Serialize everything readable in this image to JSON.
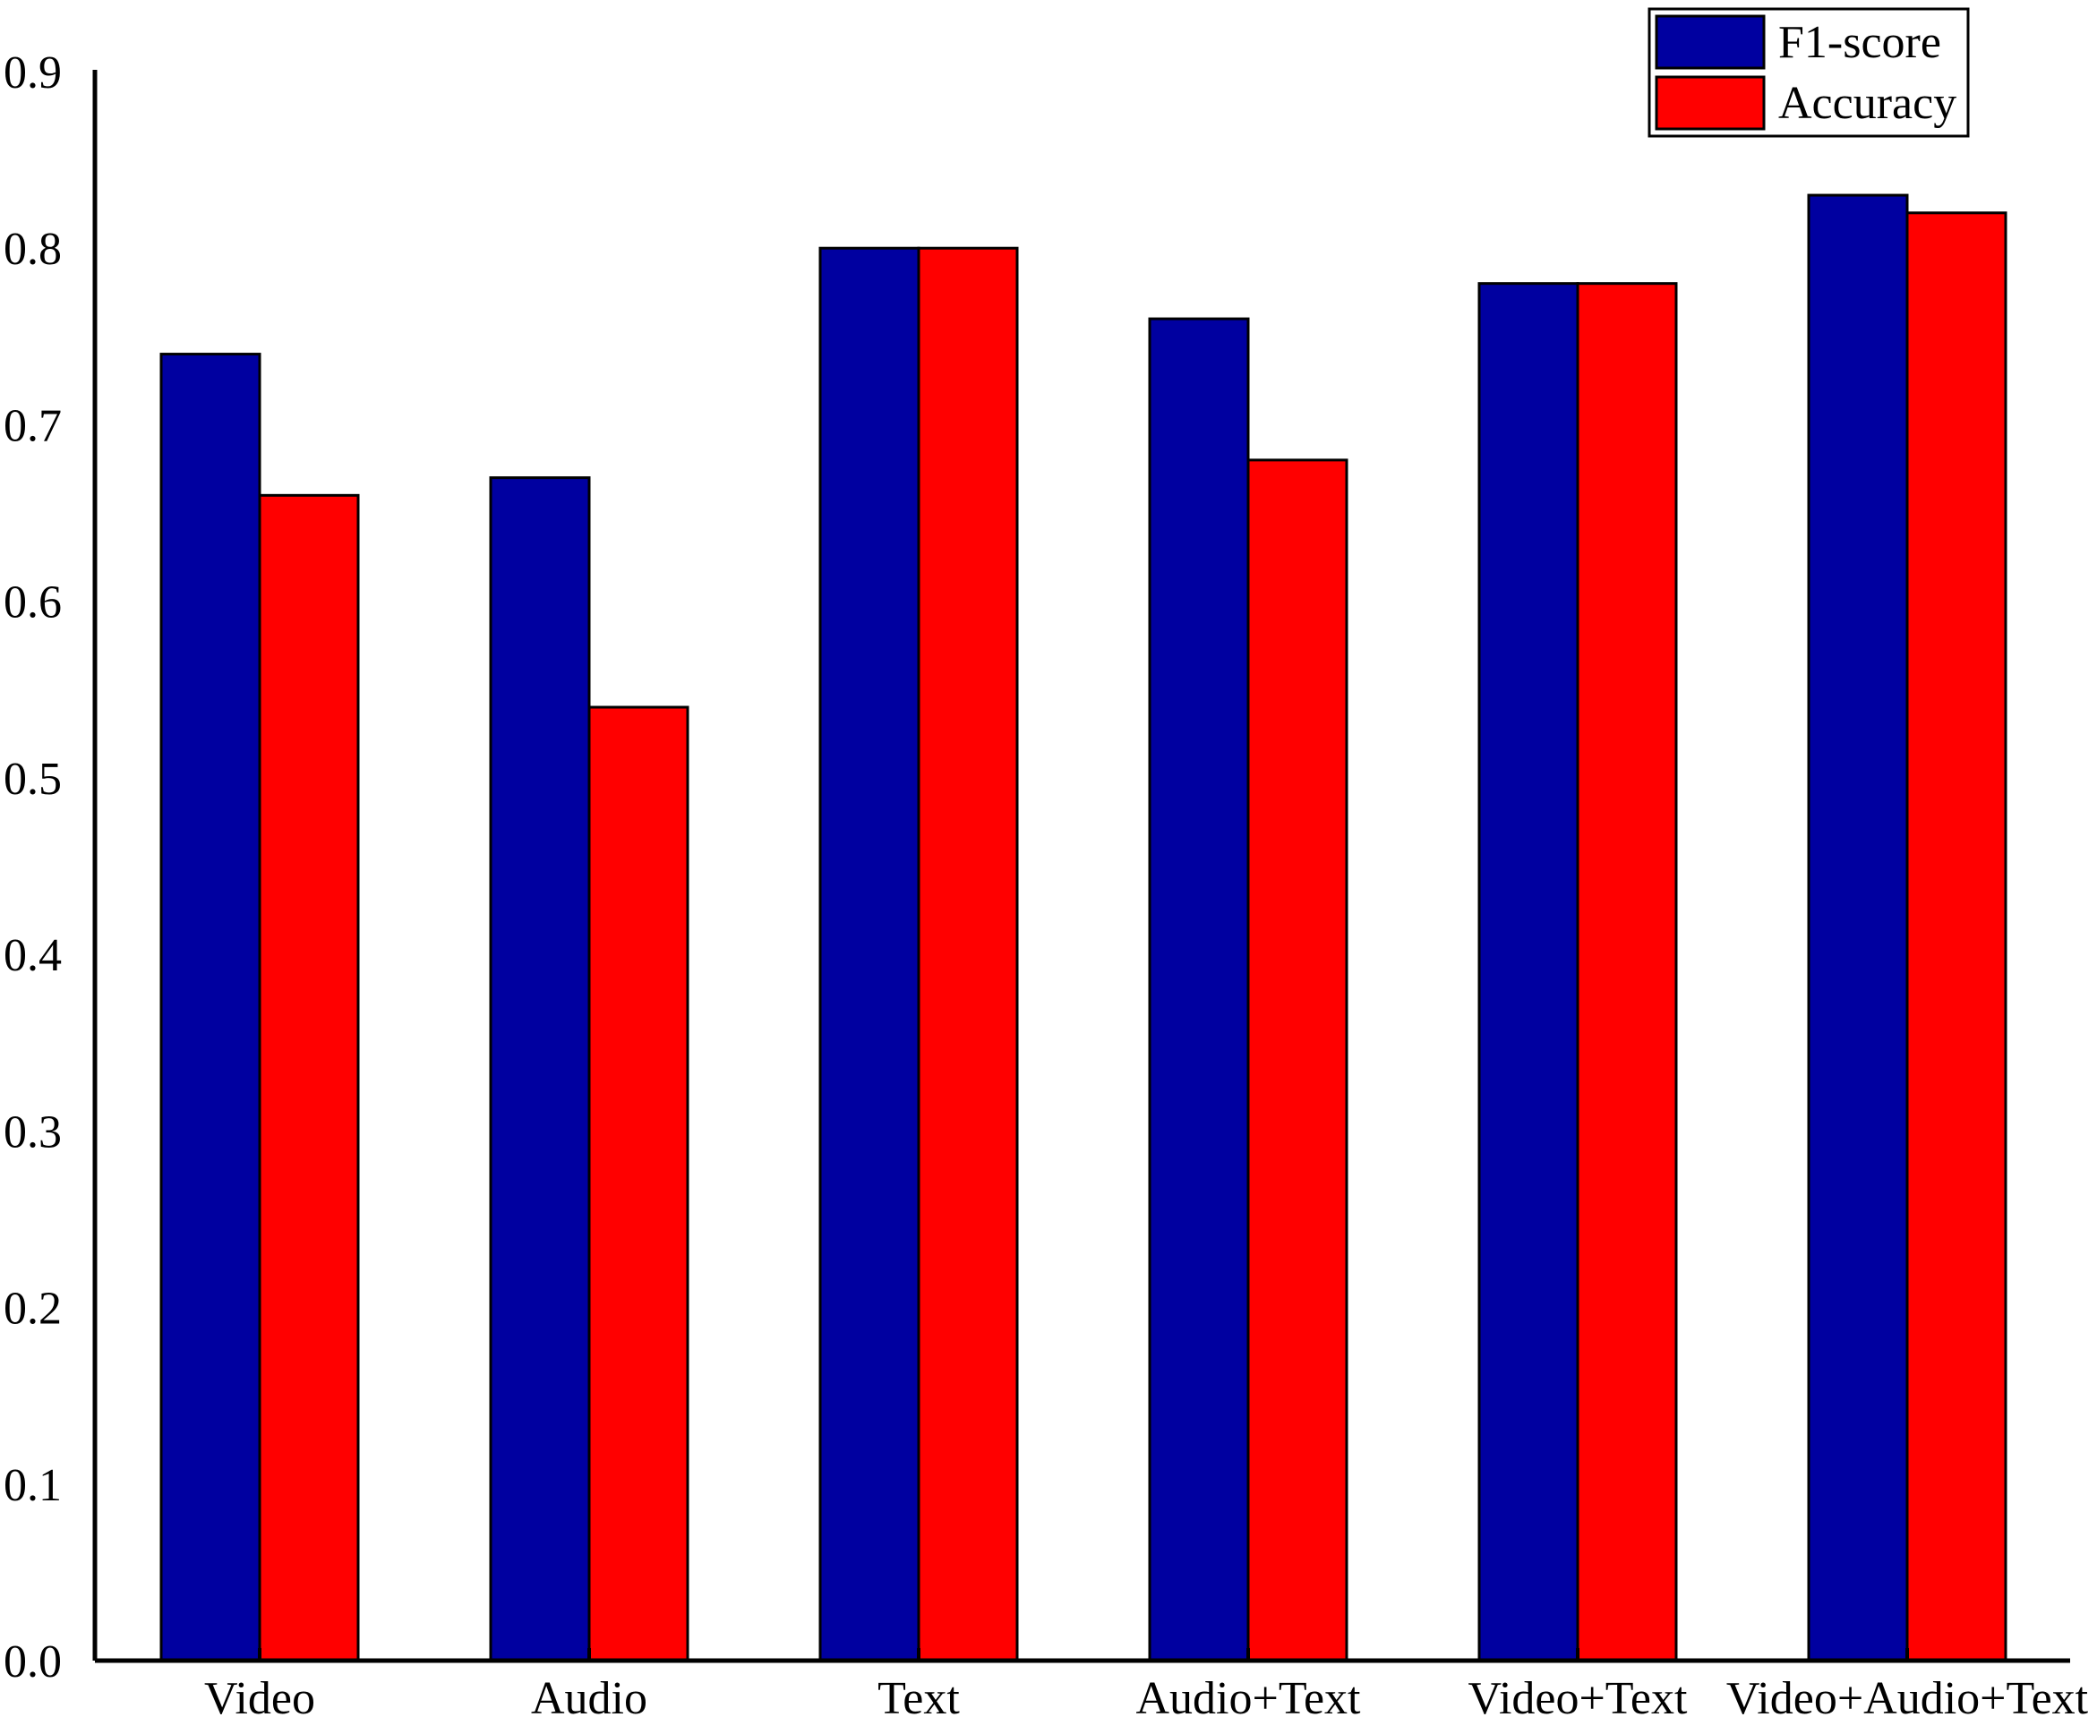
{
  "chart_data": {
    "type": "bar",
    "categories": [
      "Video",
      "Audio",
      "Text",
      "Audio+Text",
      "Video+Text",
      "Video+Audio+Text"
    ],
    "series": [
      {
        "name": "F1-score",
        "values": [
          0.74,
          0.67,
          0.8,
          0.76,
          0.78,
          0.83
        ],
        "color": "#0000A0"
      },
      {
        "name": "Accuracy",
        "values": [
          0.66,
          0.54,
          0.8,
          0.68,
          0.78,
          0.82
        ],
        "color": "#FF0000"
      }
    ],
    "y_ticks": [
      "0.0",
      "0.1",
      "0.2",
      "0.3",
      "0.4",
      "0.5",
      "0.6",
      "0.7",
      "0.8",
      "0.9"
    ],
    "ylim": [
      0,
      0.9
    ],
    "grid": false,
    "legend_position": "top-right"
  }
}
